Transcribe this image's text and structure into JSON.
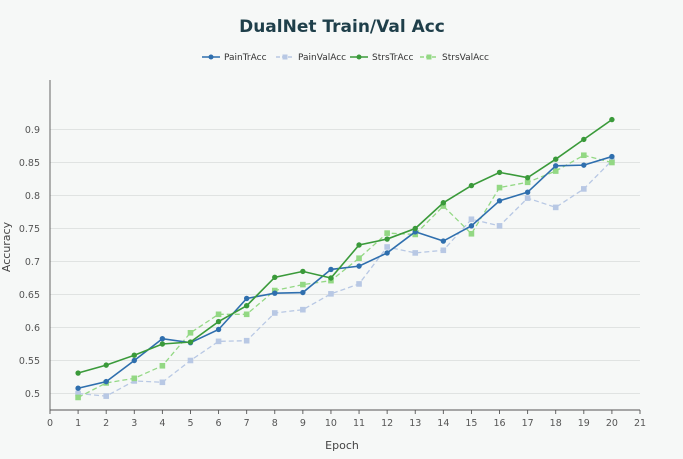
{
  "chart_data": {
    "type": "line",
    "title": "DualNet Train/Val Acc",
    "xlabel": "Epoch",
    "ylabel": "Accuracy",
    "xlim": [
      0,
      21
    ],
    "ylim": [
      0.475,
      0.975
    ],
    "x_ticks": [
      0,
      1,
      2,
      3,
      4,
      5,
      6,
      7,
      8,
      9,
      10,
      11,
      12,
      13,
      14,
      15,
      16,
      17,
      18,
      19,
      20,
      21
    ],
    "y_ticks": [
      0.5,
      0.55,
      0.6,
      0.65,
      0.7,
      0.75,
      0.8,
      0.85,
      0.9
    ],
    "y_tick_labels": [
      "0.5",
      "0.55",
      "0.6",
      "0.65",
      "0.7",
      "0.75",
      "0.8",
      "0.85",
      "0.9"
    ],
    "grid": "horizontal",
    "legend_position": "top-center",
    "x": [
      1,
      2,
      3,
      4,
      5,
      6,
      7,
      8,
      9,
      10,
      11,
      12,
      13,
      14,
      15,
      16,
      17,
      18,
      19,
      20
    ],
    "series": [
      {
        "name": "PainTrAcc",
        "color": "#2f6fae",
        "dashed": false,
        "marker": "circle",
        "values": [
          0.508,
          0.518,
          0.55,
          0.583,
          0.577,
          0.597,
          0.644,
          0.652,
          0.653,
          0.688,
          0.693,
          0.713,
          0.745,
          0.731,
          0.754,
          0.792,
          0.805,
          0.845,
          0.846,
          0.859
        ]
      },
      {
        "name": "PainValAcc",
        "color": "#b8c8e4",
        "dashed": true,
        "marker": "square",
        "values": [
          0.5,
          0.496,
          0.519,
          0.517,
          0.55,
          0.579,
          0.58,
          0.622,
          0.627,
          0.651,
          0.666,
          0.722,
          0.713,
          0.717,
          0.764,
          0.754,
          0.796,
          0.782,
          0.81,
          0.853
        ]
      },
      {
        "name": "StrsTrAcc",
        "color": "#3a9a3a",
        "dashed": false,
        "marker": "circle",
        "values": [
          0.531,
          0.543,
          0.558,
          0.575,
          0.578,
          0.609,
          0.633,
          0.676,
          0.685,
          0.675,
          0.725,
          0.734,
          0.75,
          0.789,
          0.815,
          0.835,
          0.827,
          0.855,
          0.885,
          0.915
        ]
      },
      {
        "name": "StrsValAcc",
        "color": "#93d884",
        "dashed": true,
        "marker": "square",
        "values": [
          0.494,
          0.516,
          0.523,
          0.542,
          0.592,
          0.62,
          0.62,
          0.656,
          0.665,
          0.671,
          0.705,
          0.743,
          0.741,
          0.784,
          0.742,
          0.812,
          0.82,
          0.837,
          0.861,
          0.85
        ]
      }
    ]
  }
}
